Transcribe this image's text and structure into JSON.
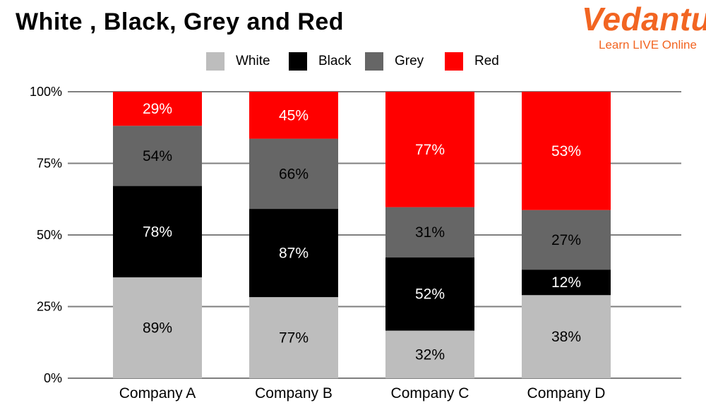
{
  "logo": {
    "brand": "Vedantu",
    "tagline": "Learn LIVE Online",
    "brand_color": "#f26522"
  },
  "chart_data": {
    "type": "bar",
    "stacked": true,
    "title": "White , Black, Grey and Red",
    "xlabel": "",
    "ylabel": "",
    "categories": [
      "Company A",
      "Company B",
      "Company C",
      "Company D"
    ],
    "y_ticks": [
      "0%",
      "25%",
      "50%",
      "75%",
      "100%"
    ],
    "ylim": [
      0,
      100
    ],
    "grid": true,
    "legend_position": "top",
    "series": [
      {
        "name": "White",
        "color": "#bdbdbd",
        "text_color": "#000000",
        "labels": [
          "89%",
          "77%",
          "32%",
          "38%"
        ],
        "stack_share_percent": [
          35.2,
          28.3,
          16.6,
          29.0
        ]
      },
      {
        "name": "Black",
        "color": "#000000",
        "text_color": "#ffffff",
        "labels": [
          "78%",
          "87%",
          "52%",
          "12%"
        ],
        "stack_share_percent": [
          31.9,
          30.8,
          25.6,
          8.9
        ]
      },
      {
        "name": "Grey",
        "color": "#666666",
        "text_color": "#000000",
        "labels": [
          "54%",
          "66%",
          "31%",
          "27%"
        ],
        "stack_share_percent": [
          21.0,
          24.5,
          17.5,
          20.8
        ]
      },
      {
        "name": "Red",
        "color": "#ff0000",
        "text_color": "#ffffff",
        "labels": [
          "29%",
          "45%",
          "77%",
          "53%"
        ],
        "stack_share_percent": [
          11.9,
          16.4,
          40.3,
          41.3
        ]
      }
    ]
  }
}
